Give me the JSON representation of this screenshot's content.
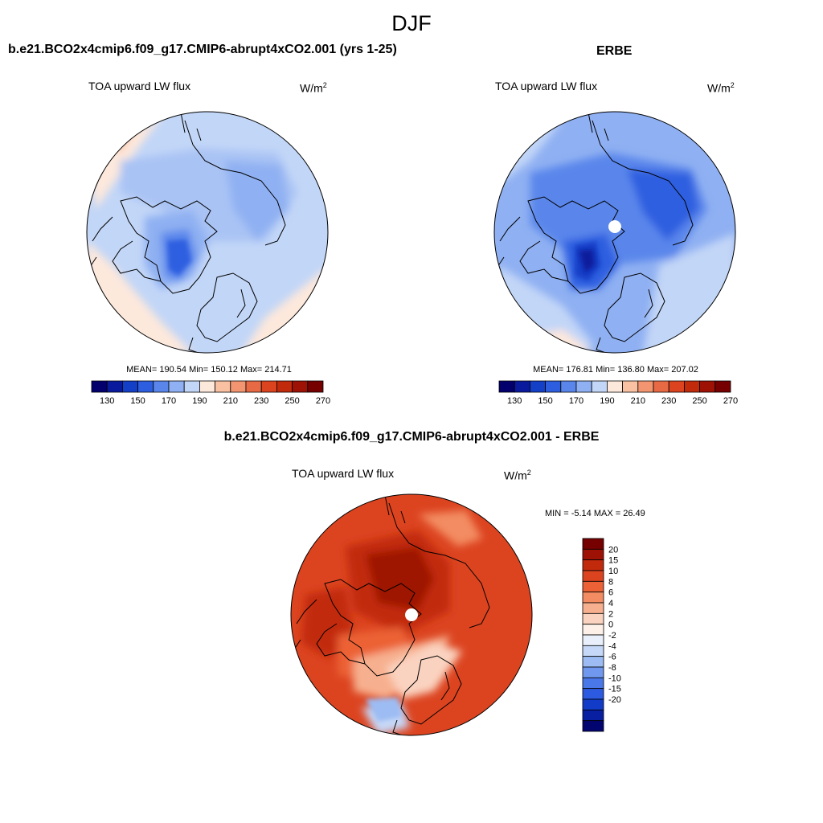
{
  "figure": {
    "title": "DJF",
    "colors": {
      "abs_scale": [
        "#03006e",
        "#0a1a9c",
        "#1440c8",
        "#2d5ee0",
        "#5a86eb",
        "#8fb0f2",
        "#c2d6f7",
        "#fde8dc",
        "#f9c0a2",
        "#f39570",
        "#e86a45",
        "#dc4420",
        "#c22a0c",
        "#9e1205",
        "#760000"
      ],
      "diff_scale": [
        "#760000",
        "#9e1205",
        "#c22a0c",
        "#dc4420",
        "#ec6236",
        "#f38c62",
        "#f7b08f",
        "#fad3c0",
        "#fdf0e8",
        "#e9f0fb",
        "#c6d8f7",
        "#9cbcf3",
        "#6f98ee",
        "#4a78e8",
        "#2c5ae0",
        "#123cc8",
        "#071fa0",
        "#02056f"
      ],
      "coast": "#000000"
    }
  },
  "panels": [
    {
      "id": "model",
      "title": "b.e21.BCO2x4cmip6.f09_g17.CMIP6-abrupt4xCO2.001 (yrs 1-25)",
      "variable": "TOA upward LW flux",
      "units_base": "W/m",
      "units_exp": "2",
      "stats": "MEAN= 190.54  Min= 150.12  Max= 214.71",
      "colorbar_ticks": [
        "130",
        "150",
        "170",
        "190",
        "210",
        "230",
        "250",
        "270"
      ]
    },
    {
      "id": "obs",
      "title": "ERBE",
      "variable": "TOA upward LW flux",
      "units_base": "W/m",
      "units_exp": "2",
      "stats": "MEAN= 176.81  Min= 136.80  Max= 207.02",
      "colorbar_ticks": [
        "130",
        "150",
        "170",
        "190",
        "210",
        "230",
        "250",
        "270"
      ]
    },
    {
      "id": "diff",
      "title": "b.e21.BCO2x4cmip6.f09_g17.CMIP6-abrupt4xCO2.001 - ERBE",
      "variable": "TOA upward LW flux",
      "units_base": "W/m",
      "units_exp": "2",
      "stats": "MIN =  -5.14 MAX =  26.49",
      "colorbar_ticks": [
        "20",
        "15",
        "10",
        "8",
        "6",
        "4",
        "2",
        "0",
        "-2",
        "-4",
        "-6",
        "-8",
        "-10",
        "-15",
        "-20"
      ]
    }
  ]
}
